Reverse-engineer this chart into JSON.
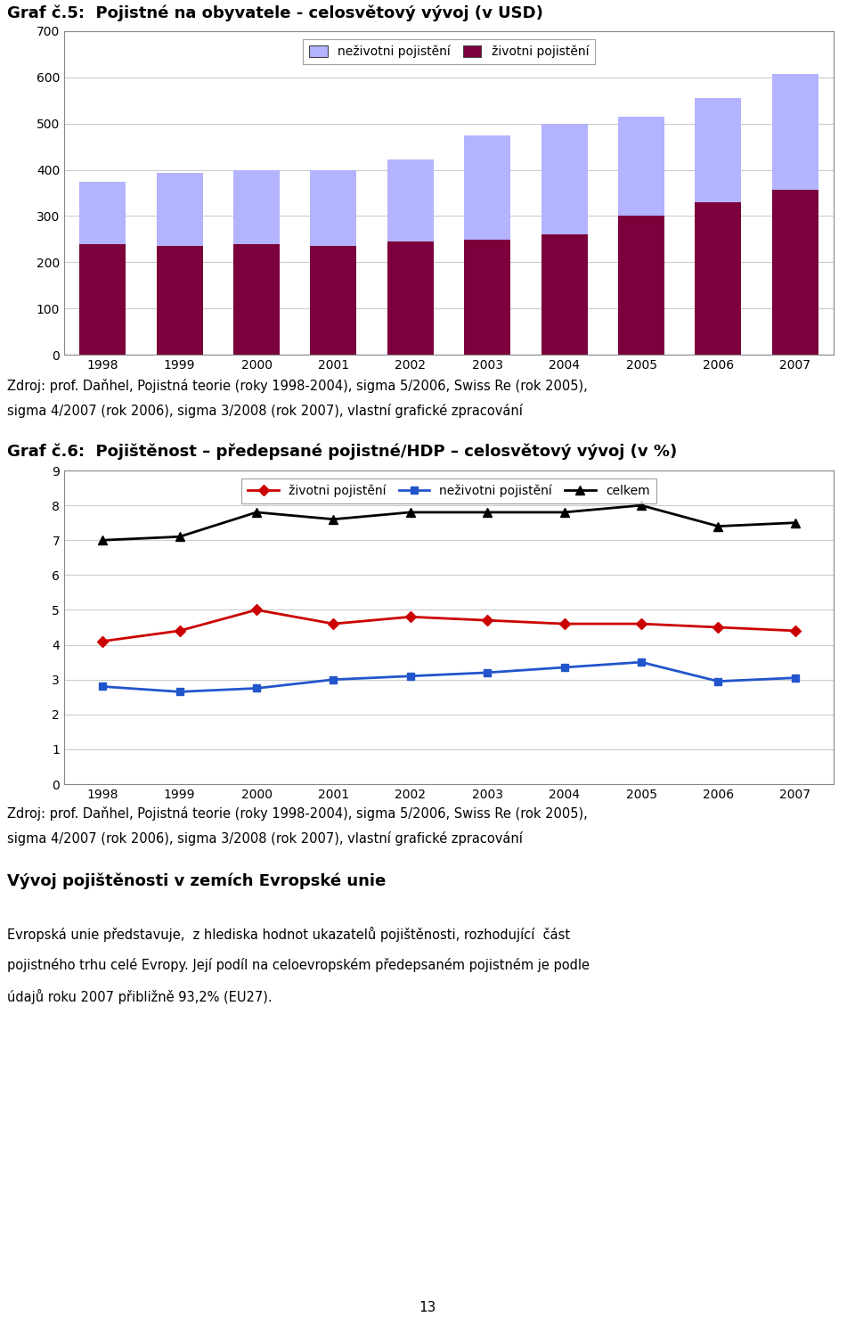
{
  "chart5_title": "Graf č.5:  Pojistné na obyvatele - celosvětový vývoj (v USD)",
  "chart6_title": "Graf č.6:  Pojištěnost – předepsané pojistné/HDP – celosvětový vývoj (v %)",
  "years": [
    1998,
    1999,
    2000,
    2001,
    2002,
    2003,
    2004,
    2005,
    2006,
    2007
  ],
  "bar_zivotni": [
    240,
    235,
    240,
    235,
    245,
    248,
    260,
    300,
    330,
    357
  ],
  "bar_nezivotni_top": [
    135,
    158,
    160,
    165,
    177,
    227,
    240,
    215,
    225,
    251
  ],
  "bar_color_zivotni": "#7b003b",
  "bar_color_nezivotni": "#b3b3ff",
  "bar_legend_nezivotni": "neživotni pojistění",
  "bar_legend_zivotni": "životni pojistění",
  "bar_ylim": [
    0,
    700
  ],
  "bar_yticks": [
    0,
    100,
    200,
    300,
    400,
    500,
    600,
    700
  ],
  "line_zivotni": [
    4.1,
    4.4,
    5.0,
    4.6,
    4.8,
    4.7,
    4.6,
    4.6,
    4.5,
    4.4
  ],
  "line_nezivotni": [
    2.8,
    2.65,
    2.75,
    3.0,
    3.1,
    3.2,
    3.35,
    3.5,
    2.95,
    3.05
  ],
  "line_celkem": [
    7.0,
    7.1,
    7.8,
    7.6,
    7.8,
    7.8,
    7.8,
    8.0,
    7.4,
    7.5
  ],
  "line_color_zivotni": "#cc0000",
  "line_color_nezivotni": "#2255cc",
  "line_color_celkem": "#000000",
  "line_legend_zivotni": "životni pojistění",
  "line_legend_nezivotni": "neživotni pojistění",
  "line_legend_celkem": "celkem",
  "line_ylim": [
    0,
    9
  ],
  "line_yticks": [
    0,
    1,
    2,
    3,
    4,
    5,
    6,
    7,
    8,
    9
  ],
  "source_text1": "Zdroj: prof. Daňhel, Pojistná teorie (roky 1998-2004), sigma 5/2006, Swiss Re (rok 2005),",
  "source_text2": "sigma 4/2007 (rok 2006), sigma 3/2008 (rok 2007), vlastní grafické zpracování",
  "vyvoj_title": "Vývoj pojištěnosti v zemích Evropské unie",
  "paragraph_text1": "Evropská unie představuje,  z hlediska hodnot ukazatelů pojištěnosti, rozhodující  část",
  "paragraph_text2": "pojistného trhu celé Evropy. Její podíl na celoevropském předepsaném pojistném je podle",
  "paragraph_text3": "údajů roku 2007 přibližně 93,2% (EU27).",
  "page_number": "13",
  "background_color": "#ffffff",
  "chart_bg_color": "#ffffff",
  "grid_color": "#cccccc",
  "border_color": "#888888"
}
